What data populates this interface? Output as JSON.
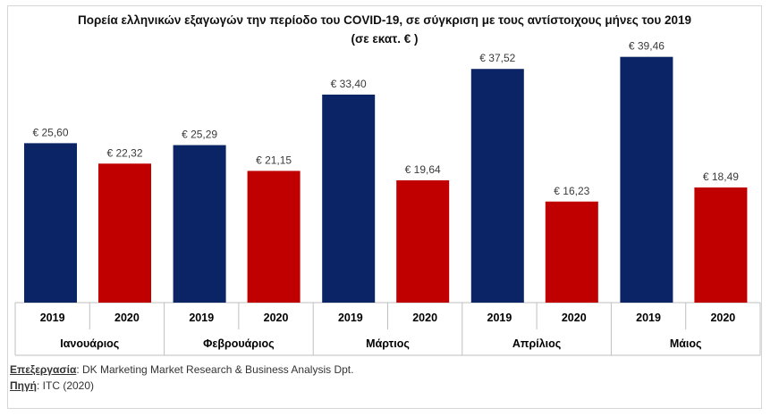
{
  "chart_data": {
    "type": "bar",
    "title": "Πορεία ελληνικών εξαγωγών την περίοδο του COVID-19, σε σύγκριση με τους αντίστοιχους μήνες του 2019",
    "subtitle": "(σε εκατ. € )",
    "value_prefix": "€ ",
    "categories": [
      "Ιανουάριος",
      "Φεβρουάριος",
      "Μάρτιος",
      "Απρίλιος",
      "Μάιος"
    ],
    "series": [
      {
        "name": "2019",
        "color": "#0a2466",
        "values": [
          25.6,
          25.29,
          33.4,
          37.52,
          39.46
        ],
        "labels": [
          "25,60",
          "25,29",
          "33,40",
          "37,52",
          "39,46"
        ]
      },
      {
        "name": "2020",
        "color": "#c00000",
        "values": [
          22.32,
          21.15,
          19.64,
          16.23,
          18.49
        ],
        "labels": [
          "22,32",
          "21,15",
          "19,64",
          "16,23",
          "18,49"
        ]
      }
    ],
    "grid": false,
    "legend": "none"
  },
  "footer": {
    "processing_key": "Επεξεργασία",
    "processing_value": ": DK Marketing Market Research & Business Analysis Dpt.",
    "source_key": "Πηγή",
    "source_value": ": ITC (2020)"
  }
}
